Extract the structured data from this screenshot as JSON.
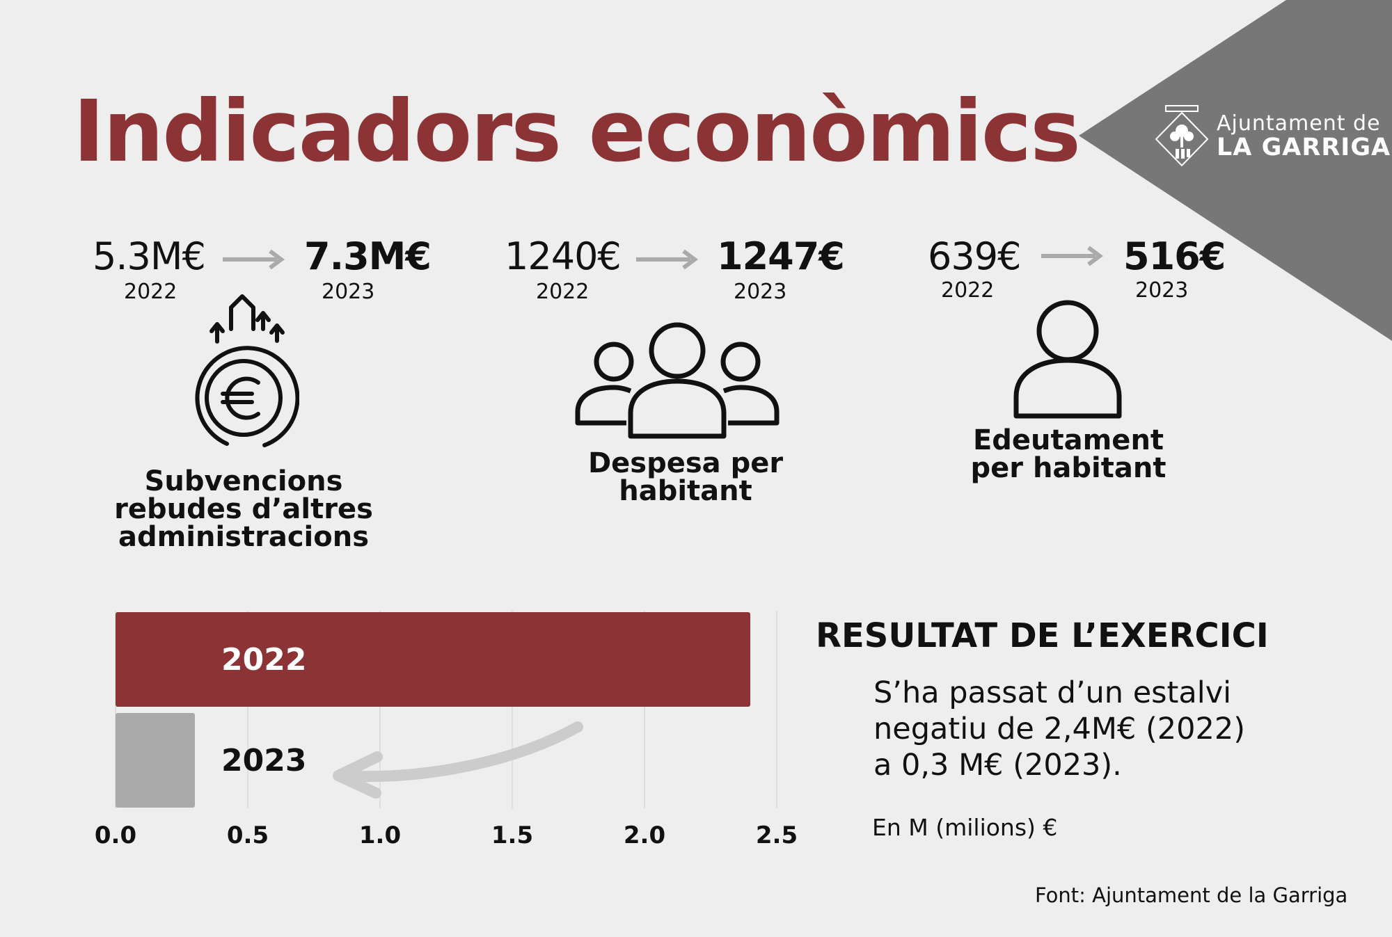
{
  "title": "Indicadors econòmics",
  "logo": {
    "line1": "Ajuntament de",
    "line2": "LA GARRIGA"
  },
  "colors": {
    "accent": "#8b3335",
    "corner": "#777777",
    "bar2023": "#aaaaaa",
    "arrow": "#aaaaaa"
  },
  "indicators": [
    {
      "value_2022": "5.3M€",
      "year_2022": "2022",
      "value_2023": "7.3M€",
      "year_2023": "2023",
      "icon": "euro-coin-arrows-icon",
      "label": [
        "Subvencions",
        "rebudes d’altres",
        "administracions"
      ]
    },
    {
      "value_2022": "1240€",
      "year_2022": "2022",
      "value_2023": "1247€",
      "year_2023": "2023",
      "icon": "people-group-icon",
      "label": [
        "Despesa per",
        "habitant"
      ]
    },
    {
      "value_2022": "639€",
      "year_2022": "2022",
      "value_2023": "516€",
      "year_2023": "2023",
      "icon": "person-icon",
      "label": [
        "Edeutament",
        "per habitant"
      ]
    }
  ],
  "result": {
    "title": "RESULTAT DE L’EXERCICI",
    "text_lines": [
      "S’ha passat d’un estalvi",
      "negatiu de 2,4M€ (2022)",
      "a 0,3 M€ (2023)."
    ],
    "units_note": "En M (milions) €"
  },
  "source": "Font: Ajuntament de la Garriga",
  "chart_data": {
    "type": "bar",
    "orientation": "horizontal",
    "categories": [
      "2022",
      "2023"
    ],
    "values": [
      2.4,
      0.3
    ],
    "colors": [
      "#8b3335",
      "#aaaaaa"
    ],
    "label_colors": [
      "#ffffff",
      "#111111"
    ],
    "xlim": [
      0,
      2.5
    ],
    "xticks": [
      "0.0",
      "0.5",
      "1.0",
      "1.5",
      "2.0",
      "2.5"
    ],
    "xtick_values": [
      0,
      0.5,
      1.0,
      1.5,
      2.0,
      2.5
    ],
    "grid": true,
    "title": "",
    "xlabel": "",
    "ylabel": ""
  }
}
